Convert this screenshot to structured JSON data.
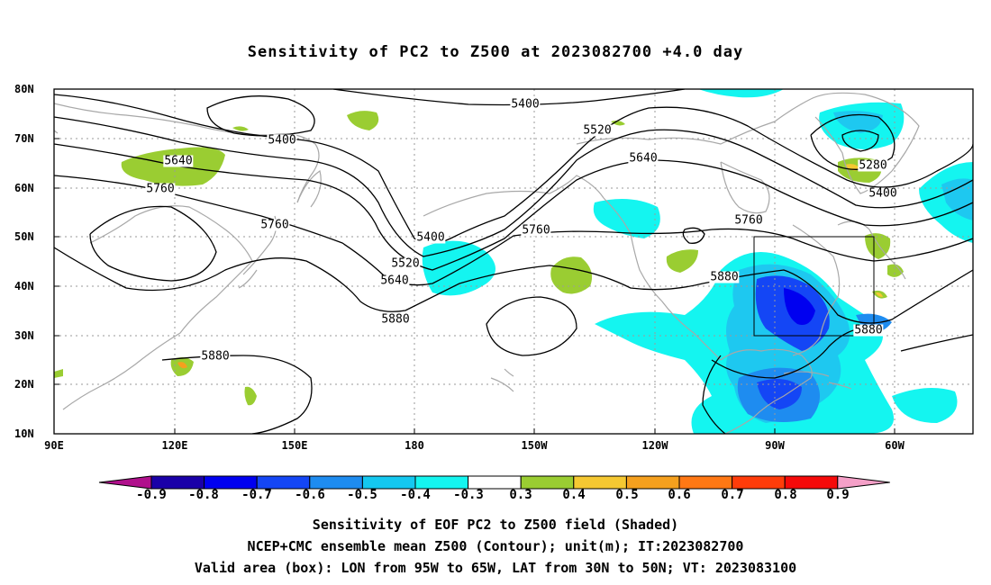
{
  "title": "Sensitivity of PC2 to Z500 at 2023082700 +4.0 day",
  "lat_labels": [
    "80N",
    "70N",
    "60N",
    "50N",
    "40N",
    "30N",
    "20N",
    "10N"
  ],
  "lon_labels": [
    "90E",
    "120E",
    "150E",
    "180",
    "150W",
    "120W",
    "90W",
    "60W"
  ],
  "contour_labels": [
    "5400",
    "5520",
    "5640",
    "5760",
    "5400",
    "5640",
    "5760",
    "5520",
    "5640",
    "5400",
    "5760",
    "5880",
    "5280",
    "5400",
    "5760",
    "5880",
    "5880",
    "5880"
  ],
  "colorbar": {
    "labels": [
      "-0.9",
      "-0.8",
      "-0.7",
      "-0.6",
      "-0.5",
      "-0.4",
      "-0.3",
      "0.3",
      "0.4",
      "0.5",
      "0.6",
      "0.7",
      "0.8",
      "0.9"
    ],
    "colors": [
      "#b0108c",
      "#1a00a8",
      "#0000f0",
      "#1446f5",
      "#1e8cf0",
      "#14c8f0",
      "#14f5f0",
      "#ffffff",
      "#9acd32",
      "#f5c832",
      "#f5a01e",
      "#ff7814",
      "#ff3c0a",
      "#f50a0a",
      "#f5a0c8"
    ]
  },
  "captions": [
    "Sensitivity of EOF PC2 to Z500 field (Shaded)",
    "NCEP+CMC ensemble mean Z500 (Contour); unit(m); IT:2023082700",
    "Valid area (box): LON from 95W to 65W, LAT from 30N to 50N; VT: 2023083100"
  ],
  "colors": {
    "coast": "#a8a8a8",
    "contour": "#000000",
    "grid": "#9a9a9a"
  }
}
